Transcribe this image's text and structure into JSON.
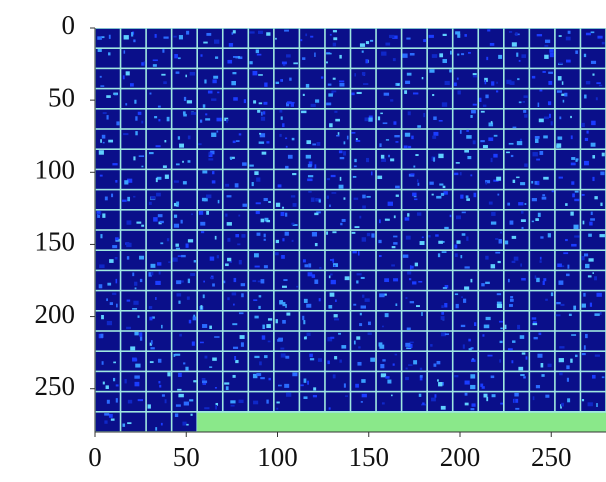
{
  "chart_data": {
    "type": "image",
    "xlim": [
      0,
      280
    ],
    "ylim": [
      280,
      0
    ],
    "xticks": [
      0,
      50,
      100,
      150,
      200,
      250
    ],
    "yticks": [
      0,
      50,
      100,
      150,
      200,
      250
    ]
  }
}
